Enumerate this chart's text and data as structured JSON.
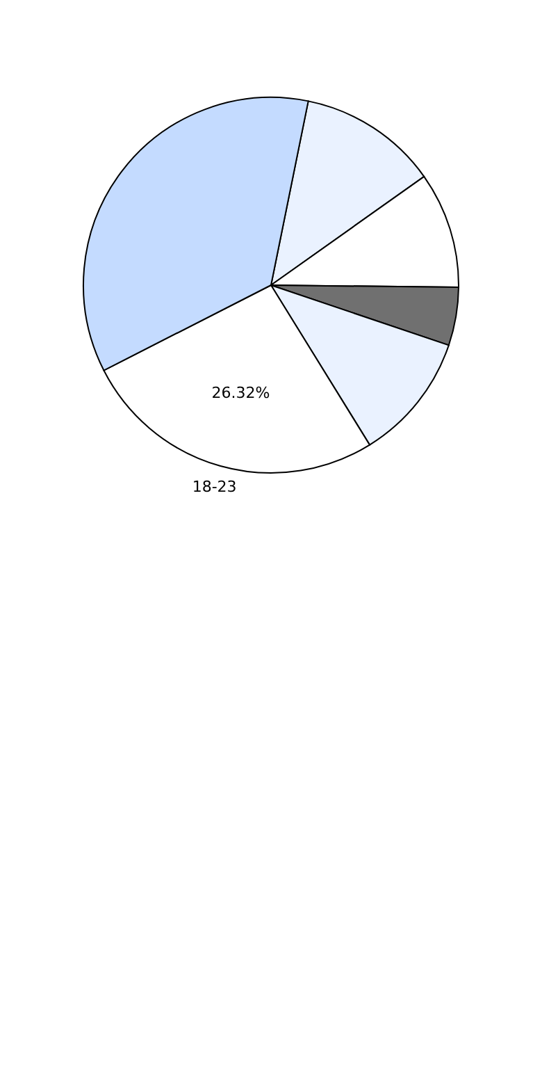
{
  "chart_data": {
    "type": "pie",
    "categories": [
      null,
      null,
      null,
      null,
      "18-23",
      null
    ],
    "values": [
      12,
      10,
      5,
      11,
      26.32,
      35.68
    ],
    "colors": [
      "#eaf2ff",
      "#ffffff",
      "#707070",
      "#eaf2ff",
      "#ffffff",
      "#c4dbff"
    ],
    "value_labels": [
      null,
      null,
      null,
      null,
      "26.32%",
      null
    ],
    "legend": false
  }
}
